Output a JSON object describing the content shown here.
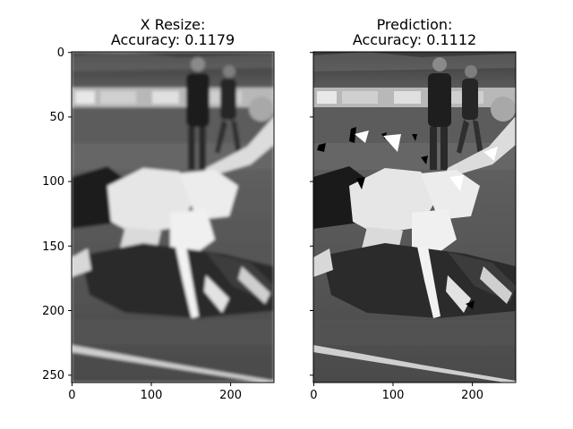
{
  "figure": {
    "panels": [
      {
        "title_line1": "X Resize:",
        "title_line2": "Accuracy: 0.1179",
        "x_ticks": [
          "0",
          "100",
          "200"
        ],
        "y_ticks": [
          "0",
          "50",
          "100",
          "150",
          "200",
          "250"
        ],
        "image_kind": "blurred"
      },
      {
        "title_line1": "Prediction:",
        "title_line2": "Accuracy: 0.1112",
        "x_ticks": [
          "0",
          "100",
          "200"
        ],
        "y_ticks": [
          "0",
          "50",
          "100",
          "150",
          "200",
          "250"
        ],
        "image_kind": "thresholded"
      }
    ],
    "axis_range_x": [
      0,
      256
    ],
    "axis_range_y": [
      0,
      256
    ],
    "colormap": "grayscale"
  }
}
